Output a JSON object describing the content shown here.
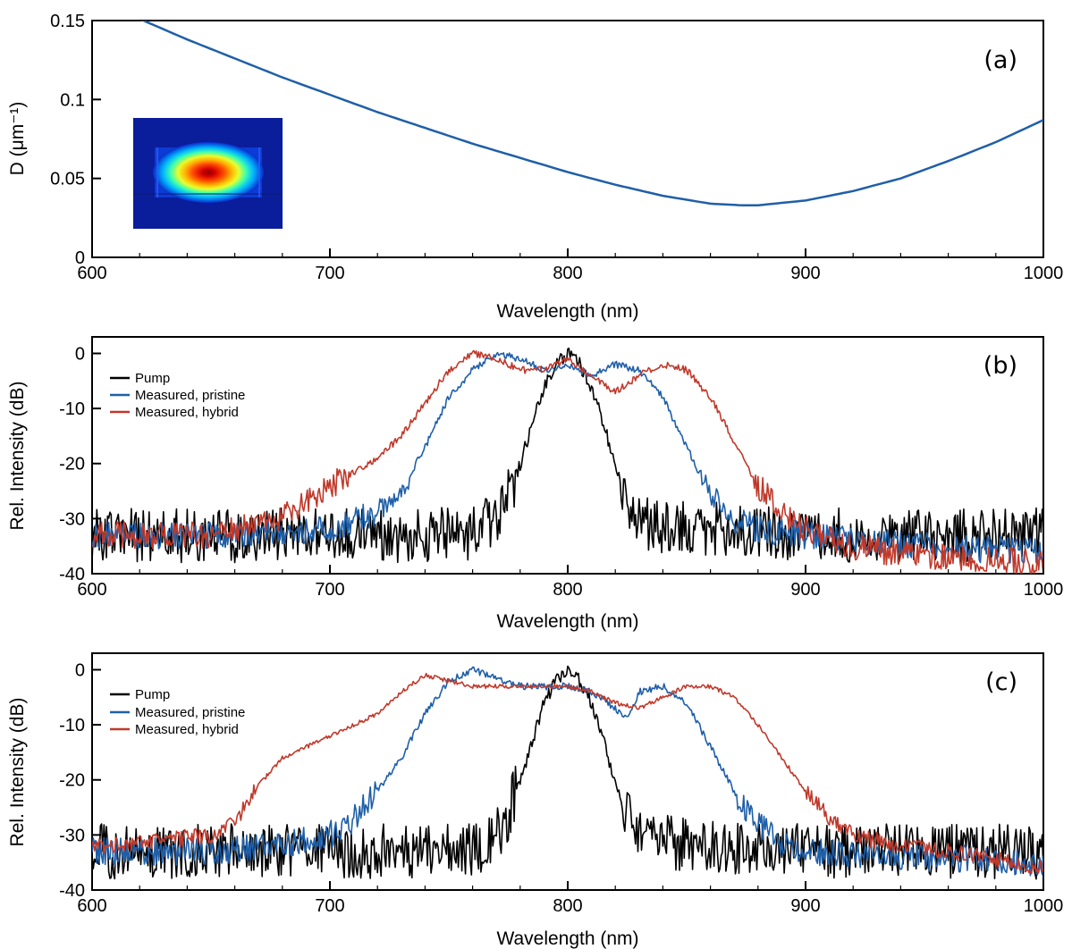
{
  "chart_data": [
    {
      "type": "line",
      "panel_label": "(a)",
      "xlabel": "Wavelength (nm)",
      "ylabel": "D (μm⁻¹)",
      "xlim": [
        600,
        1000
      ],
      "ylim": [
        0,
        0.15
      ],
      "xticks": [
        600,
        700,
        800,
        900,
        1000
      ],
      "xtick_labels": [
        "600",
        "700",
        "800",
        "900",
        "1000"
      ],
      "yticks": [
        0,
        0.05,
        0.1,
        0.15
      ],
      "ytick_labels": [
        "0",
        "0.05",
        "0.1",
        "0.15"
      ],
      "grid": false,
      "inset": "mode-profile-heatmap",
      "series": [
        {
          "color": "#1f5fa8",
          "x": [
            600,
            620,
            640,
            660,
            680,
            700,
            720,
            740,
            760,
            780,
            800,
            820,
            840,
            860,
            873,
            880,
            900,
            920,
            940,
            960,
            980,
            1000
          ],
          "y": [
            0.165,
            0.151,
            0.138,
            0.126,
            0.114,
            0.103,
            0.092,
            0.082,
            0.072,
            0.063,
            0.054,
            0.046,
            0.039,
            0.034,
            0.033,
            0.033,
            0.036,
            0.042,
            0.05,
            0.061,
            0.073,
            0.087
          ]
        }
      ]
    },
    {
      "type": "line",
      "panel_label": "(b)",
      "xlabel": "Wavelength (nm)",
      "ylabel": "Rel. Intensity (dB)",
      "xlim": [
        600,
        1000
      ],
      "ylim": [
        -40,
        3
      ],
      "xticks": [
        600,
        700,
        800,
        900,
        1000
      ],
      "xtick_labels": [
        "600",
        "700",
        "800",
        "900",
        "1000"
      ],
      "yticks": [
        -40,
        -30,
        -20,
        -10,
        0
      ],
      "ytick_labels": [
        "-40",
        "-30",
        "-20",
        "-10",
        "0"
      ],
      "legend_position": "top-left",
      "series": [
        {
          "name": "Pump",
          "color": "#000000",
          "x": [
            600,
            650,
            700,
            760,
            770,
            775,
            780,
            785,
            790,
            795,
            800,
            805,
            810,
            815,
            820,
            825,
            830,
            900,
            1000
          ],
          "y": [
            -33,
            -33,
            -33,
            -33,
            -30,
            -26,
            -20,
            -13,
            -6,
            -2,
            0,
            -2,
            -6,
            -13,
            -20,
            -26,
            -31,
            -33,
            -33
          ],
          "noise": 5
        },
        {
          "name": "Measured, pristine",
          "color": "#1f5fa8",
          "x": [
            600,
            650,
            700,
            720,
            730,
            740,
            750,
            760,
            770,
            780,
            790,
            800,
            810,
            820,
            830,
            840,
            850,
            860,
            870,
            880,
            900,
            950,
            1000
          ],
          "y": [
            -33,
            -33,
            -32,
            -29,
            -25,
            -17,
            -8,
            -3,
            0,
            -1,
            -3,
            -2,
            -4,
            -2,
            -3,
            -8,
            -17,
            -26,
            -30,
            -32,
            -33,
            -35,
            -36
          ],
          "noise": 2.5
        },
        {
          "name": "Measured, hybrid",
          "color": "#c0392b",
          "x": [
            600,
            650,
            680,
            700,
            720,
            730,
            740,
            750,
            760,
            770,
            780,
            790,
            800,
            810,
            820,
            830,
            840,
            850,
            860,
            870,
            880,
            890,
            900,
            920,
            950,
            1000
          ],
          "y": [
            -33,
            -33,
            -30,
            -24,
            -19,
            -15,
            -9,
            -3,
            0,
            -1,
            -3,
            -3,
            -1,
            -4,
            -7,
            -4,
            -2,
            -3,
            -8,
            -16,
            -24,
            -29,
            -32,
            -35,
            -37,
            -38
          ],
          "noise": 2.5
        }
      ]
    },
    {
      "type": "line",
      "panel_label": "(c)",
      "xlabel": "Wavelength (nm)",
      "ylabel": "Rel. Intensity (dB)",
      "xlim": [
        600,
        1000
      ],
      "ylim": [
        -40,
        3
      ],
      "xticks": [
        600,
        700,
        800,
        900,
        1000
      ],
      "xtick_labels": [
        "600",
        "700",
        "800",
        "900",
        "1000"
      ],
      "yticks": [
        -40,
        -30,
        -20,
        -10,
        0
      ],
      "ytick_labels": [
        "-40",
        "-30",
        "-20",
        "-10",
        "0"
      ],
      "legend_position": "top-left",
      "series": [
        {
          "name": "Pump",
          "color": "#000000",
          "x": [
            600,
            650,
            700,
            760,
            770,
            775,
            780,
            785,
            790,
            795,
            800,
            805,
            810,
            815,
            820,
            825,
            830,
            900,
            1000
          ],
          "y": [
            -33,
            -33,
            -33,
            -33,
            -30,
            -26,
            -20,
            -13,
            -6,
            -2,
            0,
            -2,
            -6,
            -13,
            -20,
            -26,
            -31,
            -33,
            -33
          ],
          "noise": 5
        },
        {
          "name": "Measured, pristine",
          "color": "#1f5fa8",
          "x": [
            600,
            650,
            680,
            700,
            710,
            720,
            730,
            740,
            750,
            760,
            780,
            800,
            810,
            820,
            825,
            830,
            840,
            850,
            860,
            870,
            880,
            890,
            900,
            950,
            1000
          ],
          "y": [
            -33,
            -33,
            -32,
            -30,
            -27,
            -22,
            -16,
            -8,
            -2,
            0,
            -3,
            -3,
            -4,
            -7,
            -9,
            -4,
            -3,
            -6,
            -14,
            -22,
            -28,
            -32,
            -33,
            -34,
            -35
          ],
          "noise": 2.5
        },
        {
          "name": "Measured, hybrid",
          "color": "#c0392b",
          "x": [
            600,
            630,
            650,
            660,
            670,
            680,
            700,
            720,
            730,
            740,
            760,
            780,
            800,
            810,
            820,
            830,
            840,
            850,
            860,
            870,
            880,
            890,
            900,
            910,
            920,
            940,
            960,
            1000
          ],
          "y": [
            -32,
            -31,
            -30,
            -28,
            -21,
            -16,
            -12,
            -8,
            -4,
            -1,
            -3,
            -3,
            -3,
            -4,
            -6,
            -7,
            -5,
            -3,
            -3,
            -5,
            -10,
            -16,
            -22,
            -27,
            -30,
            -32,
            -33,
            -36
          ],
          "noise": 1.5
        }
      ]
    }
  ]
}
